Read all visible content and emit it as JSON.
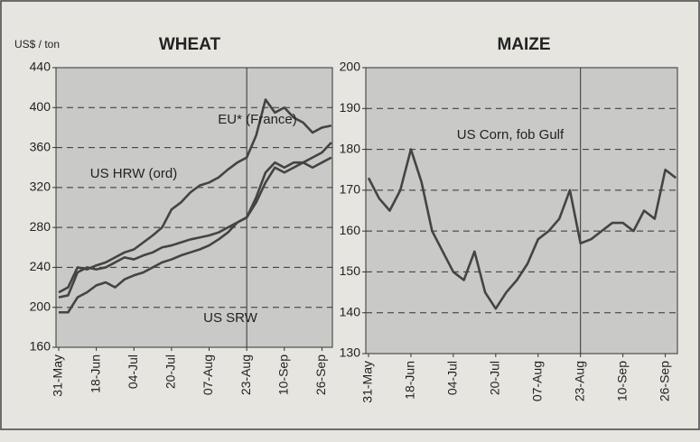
{
  "chart_data": [
    {
      "type": "line",
      "title": "WHEAT",
      "ylabel": "US$ / ton",
      "categories": [
        "31-May",
        null,
        null,
        null,
        "18-Jun",
        null,
        null,
        null,
        "04-Jul",
        null,
        null,
        null,
        "20-Jul",
        null,
        null,
        null,
        "07-Aug",
        null,
        null,
        null,
        "23-Aug",
        null,
        null,
        null,
        "10-Sep",
        null,
        null,
        null,
        "26-Sep",
        null
      ],
      "series": [
        {
          "name": "EU* (France)",
          "color": "#444444",
          "values": [
            215,
            220,
            240,
            238,
            242,
            245,
            250,
            255,
            258,
            265,
            272,
            280,
            298,
            305,
            315,
            322,
            325,
            330,
            338,
            345,
            350,
            372,
            408,
            395,
            400,
            390,
            385,
            375,
            380,
            382
          ]
        },
        {
          "name": "US HRW (ord)",
          "color": "#444444",
          "values": [
            210,
            212,
            235,
            240,
            238,
            240,
            245,
            250,
            248,
            252,
            255,
            260,
            262,
            265,
            268,
            270,
            272,
            275,
            280,
            285,
            290,
            310,
            335,
            345,
            340,
            345,
            345,
            350,
            355,
            365
          ]
        },
        {
          "name": "US SRW",
          "color": "#444444",
          "values": [
            195,
            195,
            210,
            215,
            222,
            225,
            220,
            228,
            232,
            235,
            240,
            245,
            248,
            252,
            255,
            258,
            262,
            268,
            275,
            285,
            290,
            305,
            325,
            340,
            335,
            340,
            345,
            340,
            345,
            350
          ]
        }
      ],
      "ylim": [
        160,
        440
      ],
      "yticks": [
        160,
        200,
        240,
        280,
        320,
        360,
        400,
        440
      ],
      "grid": true
    },
    {
      "type": "line",
      "title": "MAIZE",
      "categories": [
        "31-May",
        null,
        null,
        null,
        "18-Jun",
        null,
        null,
        null,
        "04-Jul",
        null,
        null,
        null,
        "20-Jul",
        null,
        null,
        null,
        "07-Aug",
        null,
        null,
        null,
        "23-Aug",
        null,
        null,
        null,
        "10-Sep",
        null,
        null,
        null,
        "26-Sep",
        null
      ],
      "series": [
        {
          "name": "US Corn, fob Gulf",
          "color": "#444444",
          "values": [
            173,
            168,
            165,
            170,
            180,
            172,
            160,
            155,
            150,
            148,
            155,
            145,
            141,
            145,
            148,
            152,
            158,
            160,
            163,
            170,
            157,
            158,
            160,
            162,
            162,
            160,
            165,
            163,
            175,
            173
          ]
        }
      ],
      "ylim": [
        130,
        200
      ],
      "yticks": [
        130,
        140,
        150,
        160,
        170,
        180,
        190,
        200
      ],
      "grid": true
    }
  ]
}
